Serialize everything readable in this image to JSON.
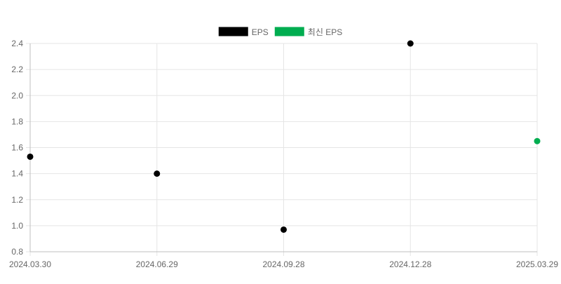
{
  "chart_data": {
    "type": "scatter",
    "title": "",
    "xlabel": "",
    "ylabel": "",
    "categories": [
      "2024.03.30",
      "2024.06.29",
      "2024.09.28",
      "2024.12.28",
      "2025.03.29"
    ],
    "ylim": [
      0.8,
      2.4
    ],
    "y_ticks": [
      0.8,
      1.0,
      1.2,
      1.4,
      1.6,
      1.8,
      2.0,
      2.2,
      2.4
    ],
    "grid": true,
    "legend_position": "top-center",
    "series": [
      {
        "name": "EPS",
        "color": "#000000",
        "points": [
          {
            "x": "2024.03.30",
            "y": 1.53
          },
          {
            "x": "2024.06.29",
            "y": 1.4
          },
          {
            "x": "2024.09.28",
            "y": 0.97
          },
          {
            "x": "2024.12.28",
            "y": 2.4
          }
        ]
      },
      {
        "name": "최신 EPS",
        "color": "#00AD50",
        "points": [
          {
            "x": "2025.03.29",
            "y": 1.65
          }
        ]
      }
    ]
  }
}
